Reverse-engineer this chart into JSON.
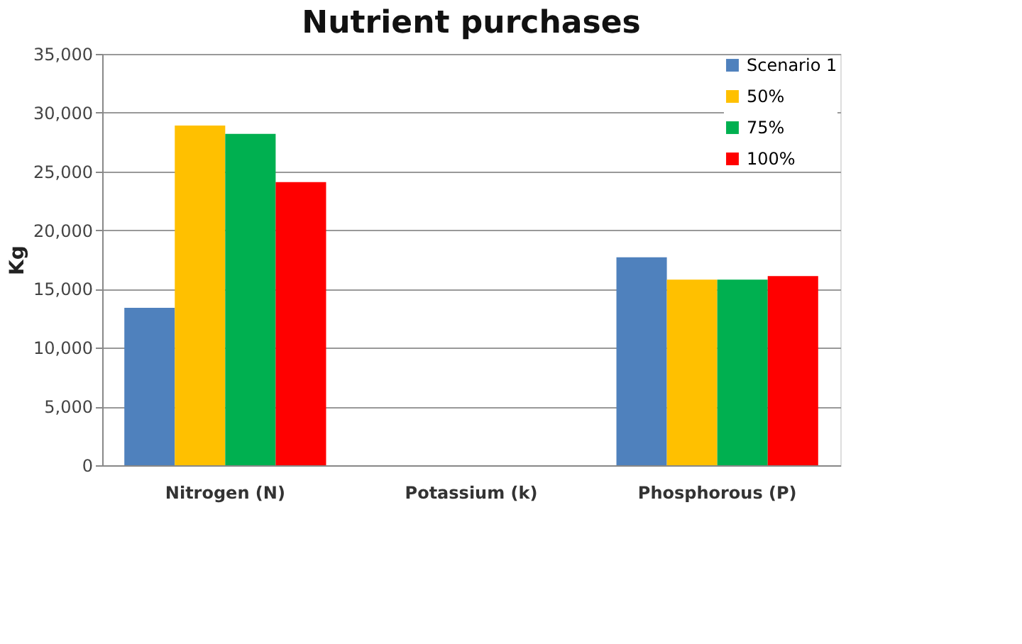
{
  "chart_data": {
    "type": "bar",
    "title": "Nutrient purchases",
    "ylabel": "Kg",
    "categories": [
      "Nitrogen (N)",
      "Potassium (k)",
      "Phosphorous (P)"
    ],
    "series": [
      {
        "name": "Scenario 1",
        "color": "#4f81bd",
        "values": [
          13400,
          0,
          17700
        ]
      },
      {
        "name": "50%",
        "color": "#ffc000",
        "values": [
          28900,
          0,
          15800
        ]
      },
      {
        "name": "75%",
        "color": "#00b050",
        "values": [
          28200,
          0,
          15800
        ]
      },
      {
        "name": "100%",
        "color": "#ff0000",
        "values": [
          24100,
          0,
          16100
        ]
      }
    ],
    "ylim": [
      0,
      35000
    ],
    "yticks": [
      {
        "value": 0,
        "label": "0"
      },
      {
        "value": 5000,
        "label": "5,000"
      },
      {
        "value": 10000,
        "label": "10,000"
      },
      {
        "value": 15000,
        "label": "15,000"
      },
      {
        "value": 20000,
        "label": "20,000"
      },
      {
        "value": 25000,
        "label": "25,000"
      },
      {
        "value": 30000,
        "label": "30,000"
      },
      {
        "value": 35000,
        "label": "35,000"
      }
    ],
    "grid": "y",
    "legend": "top right"
  }
}
